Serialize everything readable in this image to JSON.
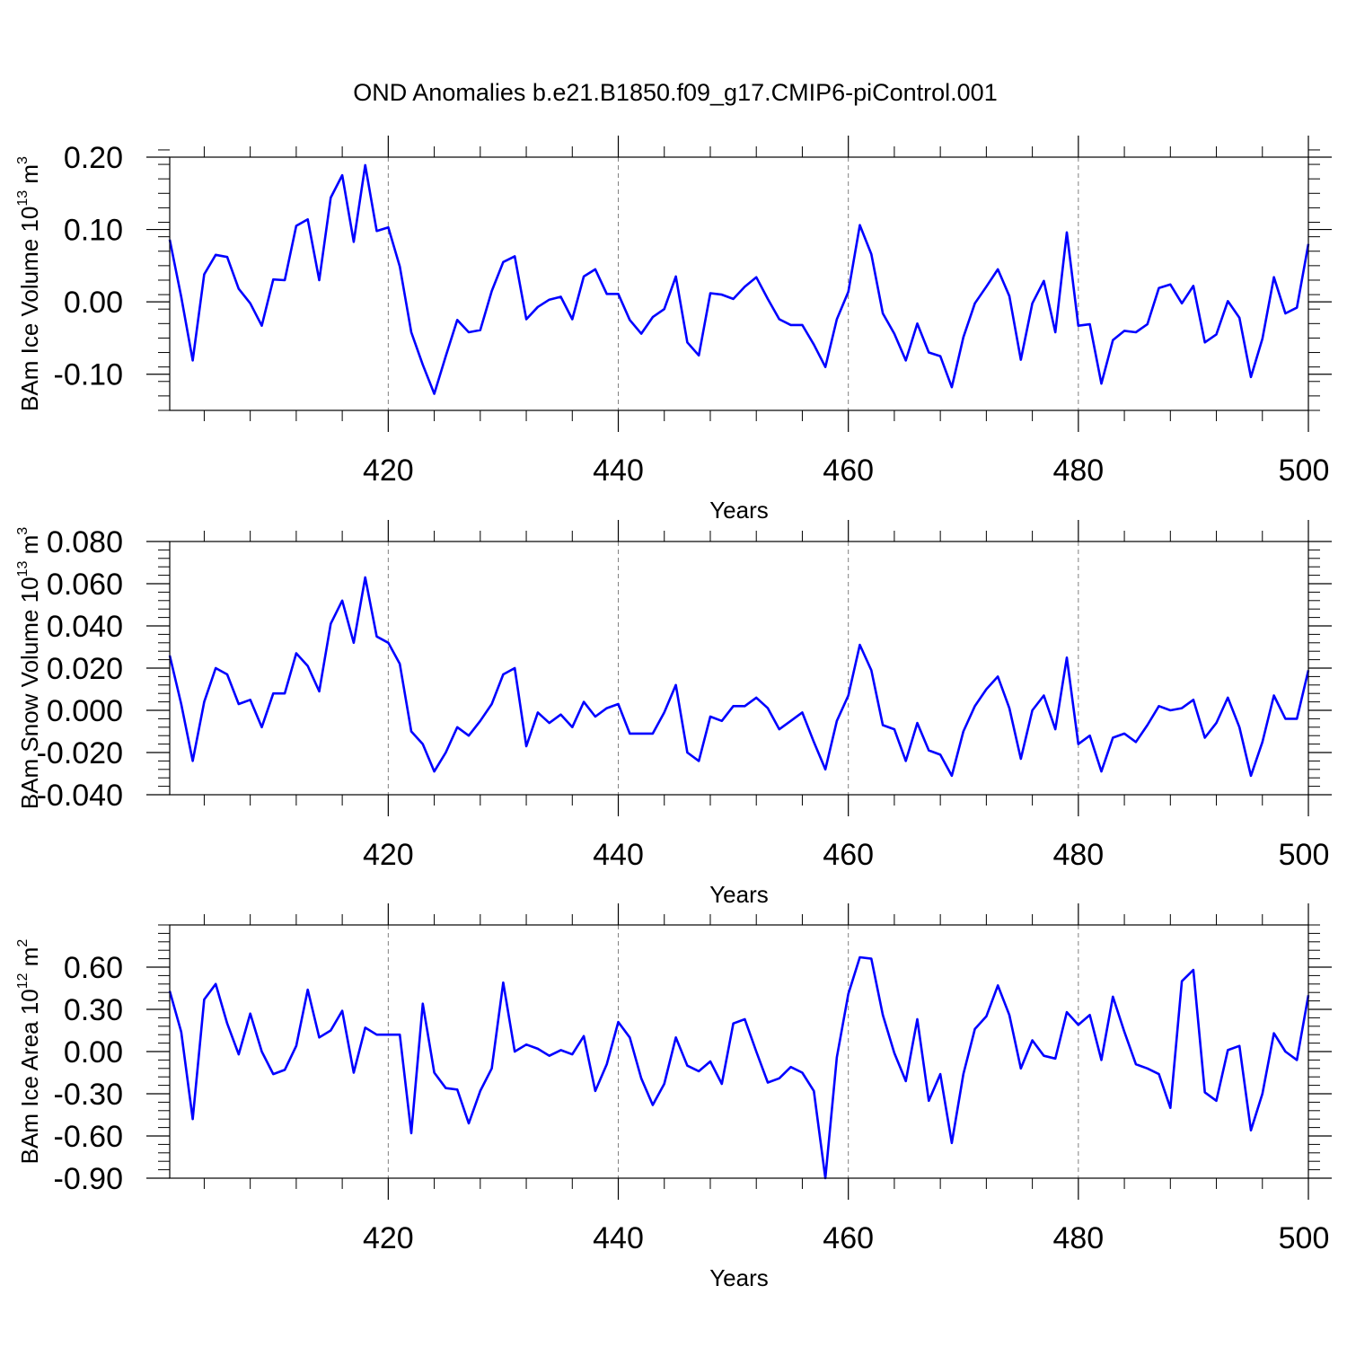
{
  "title": "OND Anomalies b.e21.B1850.f09_g17.CMIP6-piControl.001",
  "colors": {
    "line": "#0000ff",
    "axis": "#000000",
    "grid": "#808080"
  },
  "chart_data": [
    {
      "type": "line",
      "name": "ice-volume",
      "ylabel_main": "BAm Ice Volume 10",
      "ylabel_sup": "13",
      "ylabel_unit": " m",
      "ylabel_unit_sup": "3",
      "xlabel": "Years",
      "xlim": [
        401,
        500
      ],
      "ylim": [
        -0.15,
        0.2
      ],
      "xticks": [
        420,
        440,
        460,
        480,
        500
      ],
      "xtick_labels": [
        "420",
        "440",
        "460",
        "480",
        "500"
      ],
      "yticks": [
        -0.1,
        0.0,
        0.1,
        0.2
      ],
      "ytick_labels": [
        "-0.10",
        "0.00",
        "0.10",
        "0.20"
      ],
      "y_minor_step": 0.02,
      "x_start": 401,
      "values": [
        0.086,
        0.007,
        -0.081,
        0.038,
        0.065,
        0.062,
        0.018,
        -0.002,
        -0.033,
        0.031,
        0.03,
        0.105,
        0.114,
        0.03,
        0.144,
        0.175,
        0.083,
        0.189,
        0.098,
        0.103,
        0.049,
        -0.042,
        -0.087,
        -0.127,
        -0.075,
        -0.025,
        -0.042,
        -0.039,
        0.015,
        0.055,
        0.063,
        -0.024,
        -0.007,
        0.003,
        0.007,
        -0.024,
        0.035,
        0.045,
        0.011,
        0.011,
        -0.025,
        -0.044,
        -0.021,
        -0.01,
        0.035,
        -0.056,
        -0.074,
        0.012,
        0.01,
        0.004,
        0.021,
        0.034,
        0.004,
        -0.024,
        -0.032,
        -0.032,
        -0.059,
        -0.09,
        -0.024,
        0.014,
        0.106,
        0.066,
        -0.016,
        -0.044,
        -0.081,
        -0.03,
        -0.07,
        -0.075,
        -0.118,
        -0.049,
        -0.002,
        0.021,
        0.045,
        0.008,
        -0.08,
        -0.002,
        0.029,
        -0.042,
        0.096,
        -0.033,
        -0.031,
        -0.113,
        -0.053,
        -0.04,
        -0.042,
        -0.031,
        0.019,
        0.024,
        -0.002,
        0.022,
        -0.056,
        -0.045,
        0.001,
        -0.022,
        -0.104,
        -0.051,
        0.034,
        -0.016,
        -0.008,
        0.08
      ]
    },
    {
      "type": "line",
      "name": "snow-volume",
      "ylabel_main": "BAm Snow Volume 10",
      "ylabel_sup": "13",
      "ylabel_unit": " m",
      "ylabel_unit_sup": "3",
      "xlabel": "Years",
      "xlim": [
        401,
        500
      ],
      "ylim": [
        -0.04,
        0.08
      ],
      "xticks": [
        420,
        440,
        460,
        480,
        500
      ],
      "xtick_labels": [
        "420",
        "440",
        "460",
        "480",
        "500"
      ],
      "yticks": [
        -0.04,
        -0.02,
        0.0,
        0.02,
        0.04,
        0.06,
        0.08
      ],
      "ytick_labels": [
        "-0.040",
        "-0.020",
        "0.000",
        "0.020",
        "0.040",
        "0.060",
        "0.080"
      ],
      "y_minor_step": 0.004,
      "x_start": 401,
      "values": [
        0.026,
        0.003,
        -0.024,
        0.004,
        0.02,
        0.017,
        0.003,
        0.005,
        -0.008,
        0.008,
        0.008,
        0.027,
        0.021,
        0.009,
        0.041,
        0.052,
        0.032,
        0.063,
        0.035,
        0.032,
        0.022,
        -0.01,
        -0.016,
        -0.029,
        -0.02,
        -0.008,
        -0.012,
        -0.005,
        0.003,
        0.017,
        0.02,
        -0.017,
        -0.001,
        -0.006,
        -0.002,
        -0.008,
        0.004,
        -0.003,
        0.001,
        0.003,
        -0.011,
        -0.011,
        -0.011,
        -0.001,
        0.012,
        -0.02,
        -0.024,
        -0.003,
        -0.005,
        0.002,
        0.002,
        0.006,
        0.001,
        -0.009,
        -0.005,
        -0.001,
        -0.015,
        -0.028,
        -0.005,
        0.007,
        0.031,
        0.019,
        -0.007,
        -0.009,
        -0.024,
        -0.006,
        -0.019,
        -0.021,
        -0.031,
        -0.01,
        0.002,
        0.01,
        0.016,
        0.001,
        -0.023,
        0.0,
        0.007,
        -0.009,
        0.025,
        -0.016,
        -0.012,
        -0.029,
        -0.013,
        -0.011,
        -0.015,
        -0.007,
        0.002,
        0.0,
        0.001,
        0.005,
        -0.013,
        -0.006,
        0.006,
        -0.008,
        -0.031,
        -0.015,
        0.007,
        -0.004,
        -0.004,
        0.019
      ]
    },
    {
      "type": "line",
      "name": "ice-area",
      "ylabel_main": "BAm Ice Area 10",
      "ylabel_sup": "12",
      "ylabel_unit": " m",
      "ylabel_unit_sup": "2",
      "xlabel": "Years",
      "xlim": [
        401,
        500
      ],
      "ylim": [
        -0.9,
        0.9
      ],
      "xticks": [
        420,
        440,
        460,
        480,
        500
      ],
      "xtick_labels": [
        "420",
        "440",
        "460",
        "480",
        "500"
      ],
      "yticks": [
        -0.9,
        -0.6,
        -0.3,
        0.0,
        0.3,
        0.6
      ],
      "ytick_labels": [
        "-0.90",
        "-0.60",
        "-0.30",
        "0.00",
        "0.30",
        "0.60"
      ],
      "y_minor_step": 0.06,
      "x_start": 401,
      "values": [
        0.43,
        0.14,
        -0.48,
        0.37,
        0.48,
        0.2,
        -0.02,
        0.27,
        0.0,
        -0.16,
        -0.13,
        0.04,
        0.44,
        0.1,
        0.15,
        0.29,
        -0.15,
        0.17,
        0.12,
        0.12,
        0.12,
        -0.58,
        0.34,
        -0.15,
        -0.26,
        -0.27,
        -0.51,
        -0.28,
        -0.12,
        0.49,
        0.0,
        0.05,
        0.02,
        -0.03,
        0.01,
        -0.02,
        0.11,
        -0.28,
        -0.09,
        0.21,
        0.1,
        -0.19,
        -0.38,
        -0.23,
        0.1,
        -0.1,
        -0.14,
        -0.07,
        -0.23,
        0.2,
        0.23,
        0.0,
        -0.22,
        -0.19,
        -0.11,
        -0.15,
        -0.28,
        -0.9,
        -0.04,
        0.41,
        0.67,
        0.66,
        0.26,
        -0.01,
        -0.21,
        0.23,
        -0.35,
        -0.16,
        -0.65,
        -0.16,
        0.16,
        0.25,
        0.47,
        0.26,
        -0.12,
        0.08,
        -0.03,
        -0.05,
        0.28,
        0.19,
        0.26,
        -0.06,
        0.39,
        0.14,
        -0.09,
        -0.12,
        -0.16,
        -0.4,
        0.5,
        0.58,
        -0.29,
        -0.35,
        0.01,
        0.04,
        -0.56,
        -0.3,
        0.13,
        0.0,
        -0.06,
        0.4
      ]
    }
  ]
}
